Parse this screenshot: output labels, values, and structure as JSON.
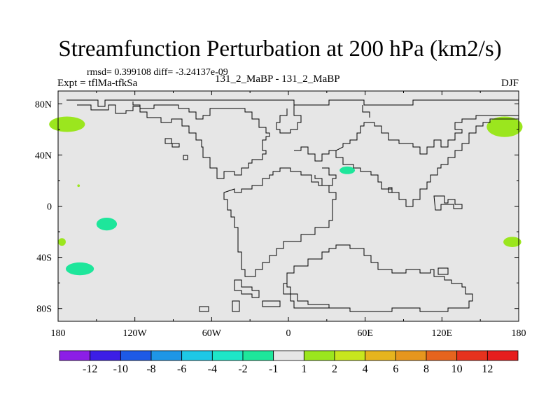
{
  "header": {
    "title": "Streamfunction Perturbation at 200 hPa (km2/s)",
    "stats": "rmsd= 0.399108 diff= -3.24137e-09",
    "experiment": "Expt = tflMa-tfkSa",
    "center_label": "131_2_MaBP - 131_2_MaBP",
    "season": "DJF"
  },
  "colors": {
    "land_fill": "#e6e6e6",
    "coastline": "#000000"
  },
  "chart_data": {
    "type": "heatmap",
    "title": "Streamfunction Perturbation at 200 hPa (km2/s)",
    "xlim": [
      -180,
      180
    ],
    "ylim": [
      -90,
      90
    ],
    "x_ticks": [
      {
        "value": -180,
        "label": "180"
      },
      {
        "value": -120,
        "label": "120W"
      },
      {
        "value": -60,
        "label": "60W"
      },
      {
        "value": 0,
        "label": "0"
      },
      {
        "value": 60,
        "label": "60E"
      },
      {
        "value": 120,
        "label": "120E"
      },
      {
        "value": 180,
        "label": "180"
      }
    ],
    "y_ticks": [
      {
        "value": 80,
        "label": "80N"
      },
      {
        "value": 40,
        "label": "40N"
      },
      {
        "value": 0,
        "label": "0"
      },
      {
        "value": -40,
        "label": "40S"
      },
      {
        "value": -80,
        "label": "80S"
      }
    ],
    "colorbar": {
      "colors": [
        "#8c1ee6",
        "#3c1ee6",
        "#1e5ae6",
        "#1e96e6",
        "#1ec8e6",
        "#1ee6c8",
        "#1ee69b",
        "#e6e6e6",
        "#9be61e",
        "#c8e61e",
        "#e6b41e",
        "#e6961e",
        "#e6641e",
        "#e6321e",
        "#e61e1e"
      ],
      "levels": [
        "-12",
        "-10",
        "-8",
        "-6",
        "-4",
        "-2",
        "-1",
        "1",
        "2",
        "4",
        "6",
        "8",
        "10",
        "12"
      ]
    },
    "anomalies": [
      {
        "lon": -173,
        "lat": 64,
        "rx": 14,
        "ry": 6,
        "value": 1.5
      },
      {
        "lon": -177,
        "lat": -28,
        "rx": 3,
        "ry": 3,
        "value": 1.5
      },
      {
        "lon": -142,
        "lat": -14,
        "rx": 8,
        "ry": 5,
        "value": -1.5
      },
      {
        "lon": -163,
        "lat": -49,
        "rx": 11,
        "ry": 5,
        "value": -1.5
      },
      {
        "lon": -164,
        "lat": 16,
        "rx": 1,
        "ry": 1,
        "value": 1.5
      },
      {
        "lon": 46,
        "lat": 28,
        "rx": 6,
        "ry": 3,
        "value": -1.5
      },
      {
        "lon": 169,
        "lat": 62,
        "rx": 14,
        "ry": 8,
        "value": 1.5
      },
      {
        "lon": 175,
        "lat": -28,
        "rx": 7,
        "ry": 4,
        "value": 1.5
      }
    ]
  }
}
